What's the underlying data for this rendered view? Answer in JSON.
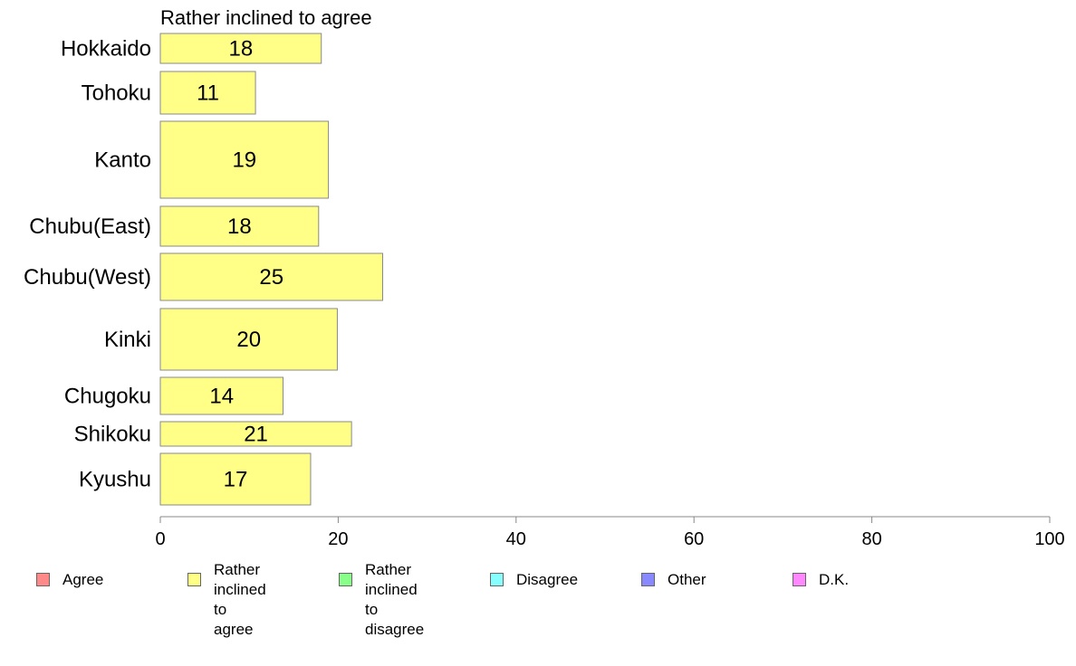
{
  "chart_data": {
    "type": "bar",
    "orientation": "horizontal",
    "title": "Rather inclined to agree",
    "categories": [
      "Hokkaido",
      "Tohoku",
      "Kanto",
      "Chubu(East)",
      "Chubu(West)",
      "Kinki",
      "Chugoku",
      "Shikoku",
      "Kyushu"
    ],
    "values": [
      18,
      11,
      19,
      18,
      25,
      20,
      14,
      21,
      17
    ],
    "bar_values": [
      18.1,
      10.7,
      18.9,
      17.8,
      25.0,
      19.9,
      13.8,
      21.5,
      16.9
    ],
    "xlim": [
      0,
      100
    ],
    "xticks": [
      0,
      20,
      40,
      60,
      80,
      100
    ],
    "grid": false,
    "bar_color": "#ffff88",
    "legend_placement": "bottom",
    "legend": [
      {
        "label": "Agree",
        "color": "#ff8888"
      },
      {
        "label": "Rather inclined\nto agree",
        "color": "#ffff88"
      },
      {
        "label": "Rather inclined\nto disagree",
        "color": "#88ff88"
      },
      {
        "label": "Disagree",
        "color": "#88ffff"
      },
      {
        "label": "Other",
        "color": "#8888ff"
      },
      {
        "label": "D.K.",
        "color": "#ff88ff"
      }
    ]
  }
}
